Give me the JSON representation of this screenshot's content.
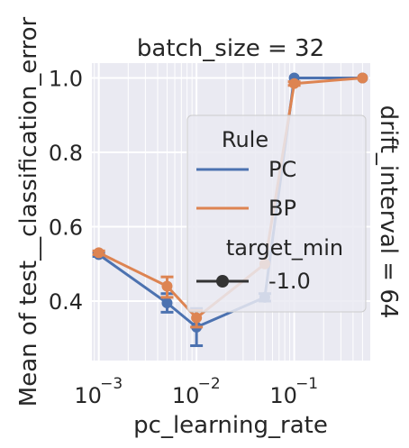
{
  "chart_data": {
    "type": "line",
    "title": "batch_size = 32",
    "row_label": "drift_interval = 64",
    "xlabel": "pc_learning_rate",
    "ylabel": "Mean of test__classification_error",
    "xscale": "log",
    "xlim": [
      0.00085,
      0.6
    ],
    "ylim": [
      0.24,
      1.04
    ],
    "grid": true,
    "x_ticks": [
      {
        "value": 0.001,
        "label": "10",
        "exp": "−3"
      },
      {
        "value": 0.01,
        "label": "10",
        "exp": "−2"
      },
      {
        "value": 0.1,
        "label": "10",
        "exp": "−1"
      }
    ],
    "y_ticks": [
      {
        "value": 0.4,
        "label": "0.4"
      },
      {
        "value": 0.6,
        "label": "0.6"
      },
      {
        "value": 0.8,
        "label": "0.8"
      },
      {
        "value": 1.0,
        "label": "1.0"
      }
    ],
    "x": [
      0.001,
      0.005,
      0.01,
      0.05,
      0.1,
      0.5
    ],
    "series": [
      {
        "name": "PC",
        "color": "#4c72b0",
        "values": [
          0.525,
          0.395,
          0.33,
          0.41,
          1.0,
          1.0
        ],
        "err_low": [
          0.52,
          0.37,
          0.28,
          0.4,
          1.0,
          1.0
        ],
        "err_high": [
          0.53,
          0.42,
          0.38,
          0.42,
          1.0,
          1.0
        ]
      },
      {
        "name": "BP",
        "color": "#dd8452",
        "values": [
          0.53,
          0.44,
          0.355,
          0.5,
          0.985,
          1.0
        ],
        "err_low": [
          0.525,
          0.41,
          0.33,
          0.5,
          0.98,
          1.0
        ],
        "err_high": [
          0.535,
          0.465,
          0.375,
          0.5,
          0.99,
          1.0
        ]
      }
    ],
    "legend": {
      "placement": "center-right",
      "hue_title": "Rule",
      "hue_entries": [
        "PC",
        "BP"
      ],
      "style_title": "target_min",
      "style_entries": [
        "-1.0"
      ]
    }
  }
}
